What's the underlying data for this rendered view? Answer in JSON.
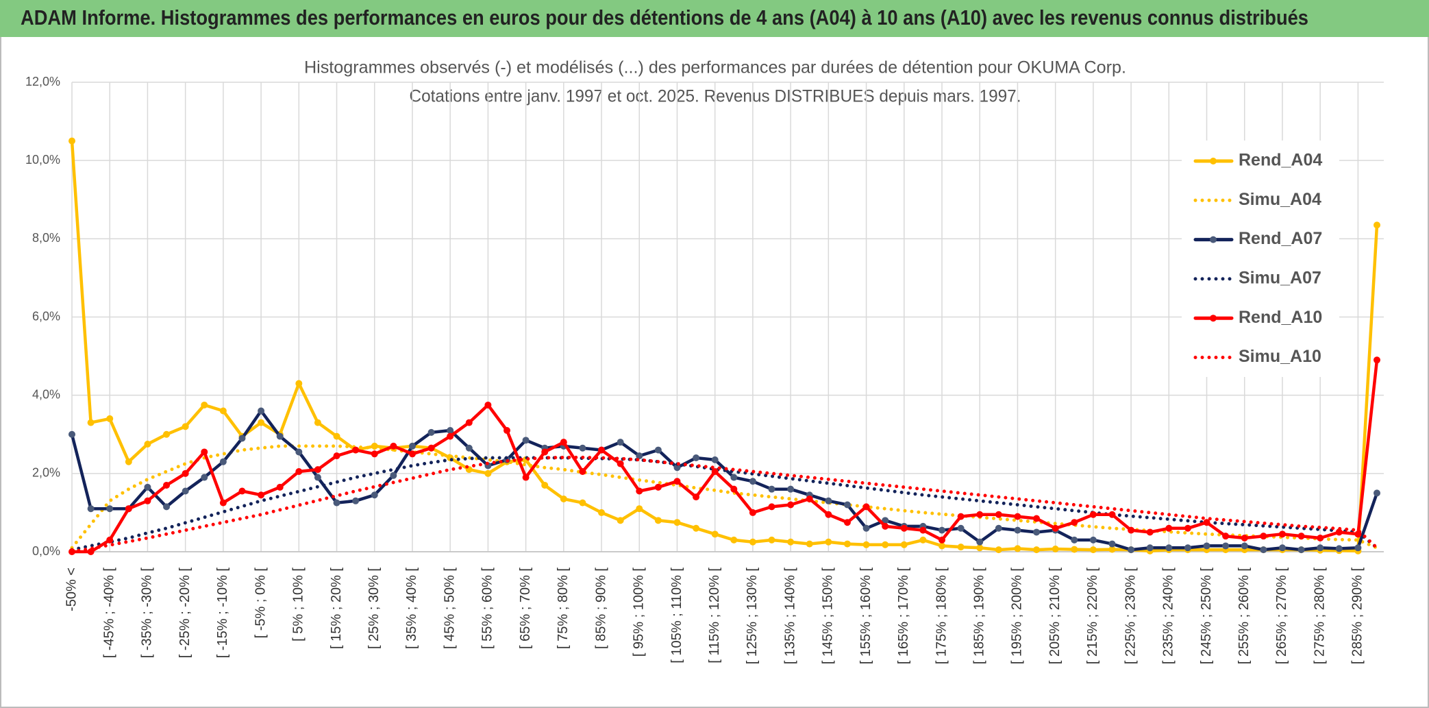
{
  "header": {
    "title": "ADAM Informe. Histogrammes des performances en euros pour des détentions de 4 ans (A04) à 10 ans (A10) avec les revenus connus distribués"
  },
  "chart_data": {
    "type": "line",
    "title": "Histogrammes observés (-) et modélisés (...) des performances par durées de détention pour OKUMA Corp.",
    "subtitle": "Cotations entre janv. 1997 et oct. 2025. Revenus DISTRIBUES depuis mars. 1997.",
    "categories": [
      "-50% <",
      null,
      "[ -45% ; -40% [",
      null,
      "[ -35% ; -30% [",
      null,
      "[ -25% ; -20% [",
      null,
      "[ -15% ; -10% [",
      null,
      "[ -5% ; 0% [",
      null,
      "[ 5% ; 10% [",
      null,
      "[ 15% ; 20% [",
      null,
      "[ 25% ; 30% [",
      null,
      "[ 35% ; 40% [",
      null,
      "[ 45% ; 50% [",
      null,
      "[ 55% ; 60% [",
      null,
      "[ 65% ; 70% [",
      null,
      "[ 75% ; 80% [",
      null,
      "[ 85% ; 90% [",
      null,
      "[ 95% ; 100% [",
      null,
      "[ 105% ; 110% [",
      null,
      "[ 115% ; 120% [",
      null,
      "[ 125% ; 130% [",
      null,
      "[ 135% ; 140% [",
      null,
      "[ 145% ; 150% [",
      null,
      "[ 155% ; 160% [",
      null,
      "[ 165% ; 170% [",
      null,
      "[ 175% ; 180% [",
      null,
      "[ 185% ; 190% [",
      null,
      "[ 195% ; 200% [",
      null,
      "[ 205% ; 210% [",
      null,
      "[ 215% ; 220% [",
      null,
      "[ 225% ; 230% [",
      null,
      "[ 235% ; 240% [",
      null,
      "[ 245% ; 250% [",
      null,
      "[ 255% ; 260% [",
      null,
      "[ 265% ; 270% [",
      null,
      "[ 275% ; 280% [",
      null,
      "[ 285% ; 290% [",
      null
    ],
    "series": [
      {
        "name": "Rend_A04",
        "color": "#ffc000",
        "style": "solid",
        "marker": true,
        "values": [
          10.5,
          3.3,
          3.4,
          2.3,
          2.75,
          3.0,
          3.2,
          3.75,
          3.6,
          2.95,
          3.3,
          3.0,
          4.3,
          3.3,
          2.95,
          2.6,
          2.7,
          2.65,
          2.7,
          2.65,
          2.4,
          2.1,
          2.0,
          2.3,
          2.35,
          1.7,
          1.35,
          1.25,
          1.0,
          0.8,
          1.1,
          0.8,
          0.75,
          0.6,
          0.45,
          0.3,
          0.25,
          0.3,
          0.25,
          0.2,
          0.25,
          0.2,
          0.18,
          0.18,
          0.18,
          0.3,
          0.15,
          0.12,
          0.1,
          0.05,
          0.08,
          0.05,
          0.07,
          0.06,
          0.05,
          0.06,
          0.05,
          0.02,
          0.05,
          0.05,
          0.05,
          0.05,
          0.05,
          0.05,
          0.05,
          0.05,
          0.04,
          0.03,
          0.02,
          8.35
        ]
      },
      {
        "name": "Simu_A04",
        "color": "#ffc000",
        "style": "dotted",
        "marker": false,
        "values": [
          0.1,
          0.7,
          1.3,
          1.6,
          1.85,
          2.05,
          2.25,
          2.4,
          2.5,
          2.6,
          2.65,
          2.7,
          2.7,
          2.7,
          2.7,
          2.68,
          2.65,
          2.6,
          2.55,
          2.5,
          2.45,
          2.4,
          2.35,
          2.3,
          2.22,
          2.15,
          2.1,
          2.03,
          1.97,
          1.9,
          1.83,
          1.77,
          1.7,
          1.63,
          1.57,
          1.5,
          1.45,
          1.4,
          1.35,
          1.3,
          1.25,
          1.2,
          1.15,
          1.1,
          1.05,
          1.0,
          0.96,
          0.92,
          0.88,
          0.84,
          0.8,
          0.76,
          0.72,
          0.68,
          0.64,
          0.6,
          0.57,
          0.54,
          0.51,
          0.48,
          0.45,
          0.43,
          0.41,
          0.39,
          0.37,
          0.35,
          0.33,
          0.31,
          0.3,
          0.1
        ]
      },
      {
        "name": "Rend_A07",
        "color": "#13235a",
        "style": "solid",
        "marker": true,
        "values": [
          3.0,
          1.1,
          1.1,
          1.1,
          1.65,
          1.15,
          1.55,
          1.9,
          2.3,
          2.9,
          3.6,
          2.95,
          2.55,
          1.9,
          1.25,
          1.3,
          1.45,
          1.95,
          2.7,
          3.05,
          3.1,
          2.65,
          2.2,
          2.35,
          2.85,
          2.65,
          2.7,
          2.65,
          2.6,
          2.8,
          2.45,
          2.6,
          2.15,
          2.4,
          2.35,
          1.9,
          1.8,
          1.6,
          1.6,
          1.45,
          1.3,
          1.2,
          0.6,
          0.8,
          0.65,
          0.65,
          0.55,
          0.6,
          0.25,
          0.6,
          0.55,
          0.5,
          0.55,
          0.3,
          0.3,
          0.2,
          0.05,
          0.1,
          0.1,
          0.1,
          0.15,
          0.15,
          0.15,
          0.05,
          0.1,
          0.05,
          0.1,
          0.08,
          0.1,
          1.5
        ]
      },
      {
        "name": "Simu_A07",
        "color": "#13235a",
        "style": "dotted",
        "marker": false,
        "values": [
          0.05,
          0.15,
          0.25,
          0.35,
          0.48,
          0.6,
          0.74,
          0.88,
          1.02,
          1.16,
          1.3,
          1.42,
          1.54,
          1.66,
          1.78,
          1.9,
          2.0,
          2.1,
          2.2,
          2.28,
          2.35,
          2.38,
          2.4,
          2.4,
          2.4,
          2.4,
          2.4,
          2.39,
          2.38,
          2.37,
          2.35,
          2.3,
          2.24,
          2.18,
          2.11,
          2.05,
          1.99,
          1.93,
          1.87,
          1.81,
          1.75,
          1.69,
          1.63,
          1.57,
          1.51,
          1.45,
          1.4,
          1.35,
          1.3,
          1.25,
          1.2,
          1.15,
          1.1,
          1.05,
          1.0,
          0.95,
          0.91,
          0.87,
          0.83,
          0.79,
          0.75,
          0.72,
          0.69,
          0.66,
          0.63,
          0.6,
          0.57,
          0.54,
          0.5,
          0.1
        ]
      },
      {
        "name": "Rend_A10",
        "color": "#ff0000",
        "style": "solid",
        "marker": true,
        "values": [
          0.0,
          0.0,
          0.3,
          1.1,
          1.3,
          1.7,
          2.0,
          2.55,
          1.25,
          1.55,
          1.45,
          1.65,
          2.05,
          2.1,
          2.45,
          2.6,
          2.5,
          2.7,
          2.5,
          2.65,
          2.95,
          3.3,
          3.75,
          3.1,
          1.9,
          2.55,
          2.8,
          2.05,
          2.6,
          2.25,
          1.55,
          1.65,
          1.8,
          1.4,
          2.05,
          1.6,
          1.0,
          1.15,
          1.2,
          1.35,
          0.95,
          0.75,
          1.15,
          0.65,
          0.6,
          0.55,
          0.3,
          0.9,
          0.95,
          0.95,
          0.9,
          0.85,
          0.6,
          0.75,
          0.95,
          0.95,
          0.55,
          0.5,
          0.6,
          0.6,
          0.75,
          0.4,
          0.35,
          0.4,
          0.45,
          0.4,
          0.35,
          0.5,
          0.45,
          4.9
        ]
      },
      {
        "name": "Simu_A10",
        "color": "#ff0000",
        "style": "dotted",
        "marker": false,
        "values": [
          0.0,
          0.08,
          0.17,
          0.26,
          0.35,
          0.45,
          0.55,
          0.65,
          0.75,
          0.85,
          0.95,
          1.07,
          1.19,
          1.31,
          1.43,
          1.55,
          1.66,
          1.77,
          1.88,
          1.99,
          2.1,
          2.18,
          2.26,
          2.32,
          2.37,
          2.4,
          2.41,
          2.41,
          2.4,
          2.38,
          2.35,
          2.3,
          2.25,
          2.2,
          2.15,
          2.1,
          2.05,
          2.0,
          1.95,
          1.9,
          1.85,
          1.8,
          1.75,
          1.7,
          1.65,
          1.6,
          1.55,
          1.5,
          1.45,
          1.4,
          1.35,
          1.3,
          1.25,
          1.2,
          1.15,
          1.1,
          1.05,
          1.0,
          0.95,
          0.9,
          0.85,
          0.81,
          0.77,
          0.73,
          0.69,
          0.65,
          0.62,
          0.59,
          0.55,
          0.1
        ]
      }
    ],
    "ylim": [
      0,
      12
    ],
    "yticks": [
      {
        "value": 0,
        "label": "0,0%"
      },
      {
        "value": 2,
        "label": "2,0%"
      },
      {
        "value": 4,
        "label": "4,0%"
      },
      {
        "value": 6,
        "label": "6,0%"
      },
      {
        "value": 8,
        "label": "8,0%"
      },
      {
        "value": 10,
        "label": "10,0%"
      },
      {
        "value": 12,
        "label": "12,0%"
      }
    ],
    "grid": true,
    "xgrid": true,
    "legend": "right"
  }
}
